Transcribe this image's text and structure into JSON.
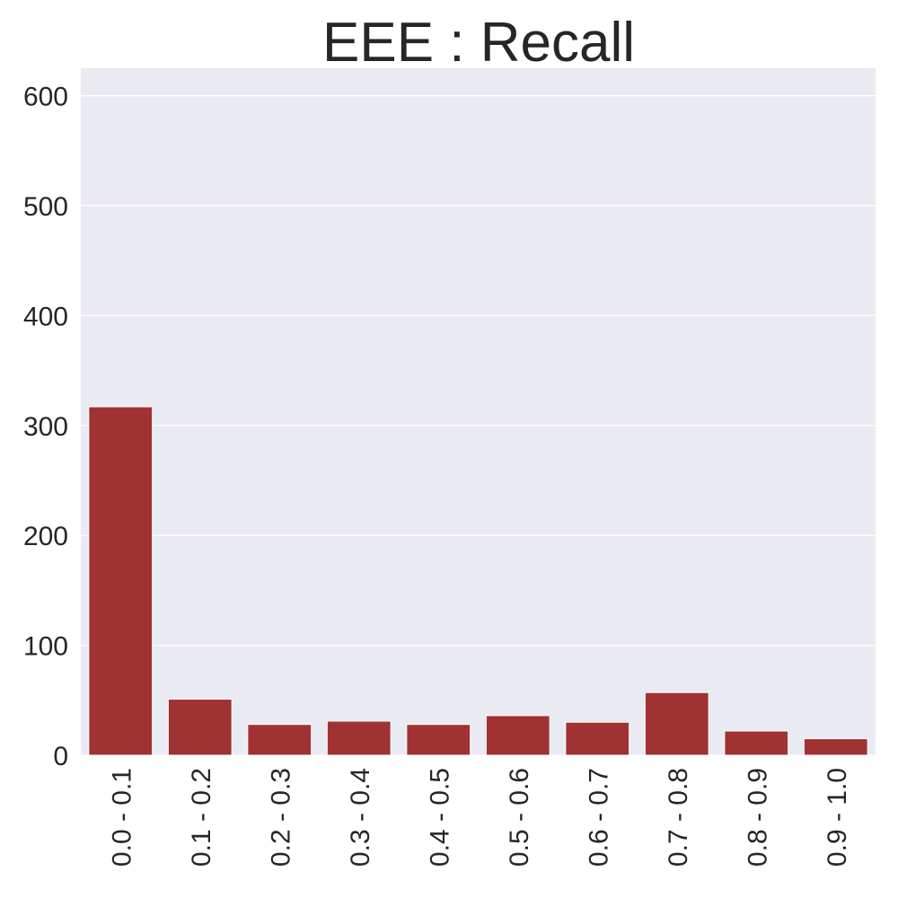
{
  "chart_data": {
    "type": "bar",
    "title": "EEE : Recall",
    "xlabel": "",
    "ylabel": "",
    "categories": [
      "0.0 - 0.1",
      "0.1 - 0.2",
      "0.2 - 0.3",
      "0.3 - 0.4",
      "0.4 - 0.5",
      "0.5 - 0.6",
      "0.6 - 0.7",
      "0.7 - 0.8",
      "0.8 - 0.9",
      "0.9 - 1.0"
    ],
    "values": [
      317,
      51,
      28,
      31,
      28,
      36,
      30,
      57,
      22,
      15
    ],
    "ylim": [
      0,
      625
    ],
    "yticks": [
      0,
      100,
      200,
      300,
      400,
      500,
      600
    ],
    "grid": true,
    "colors": {
      "bar": "#a03234",
      "plot_background": "#eaeaf2",
      "grid": "#ffffff",
      "text": "#262626"
    }
  }
}
